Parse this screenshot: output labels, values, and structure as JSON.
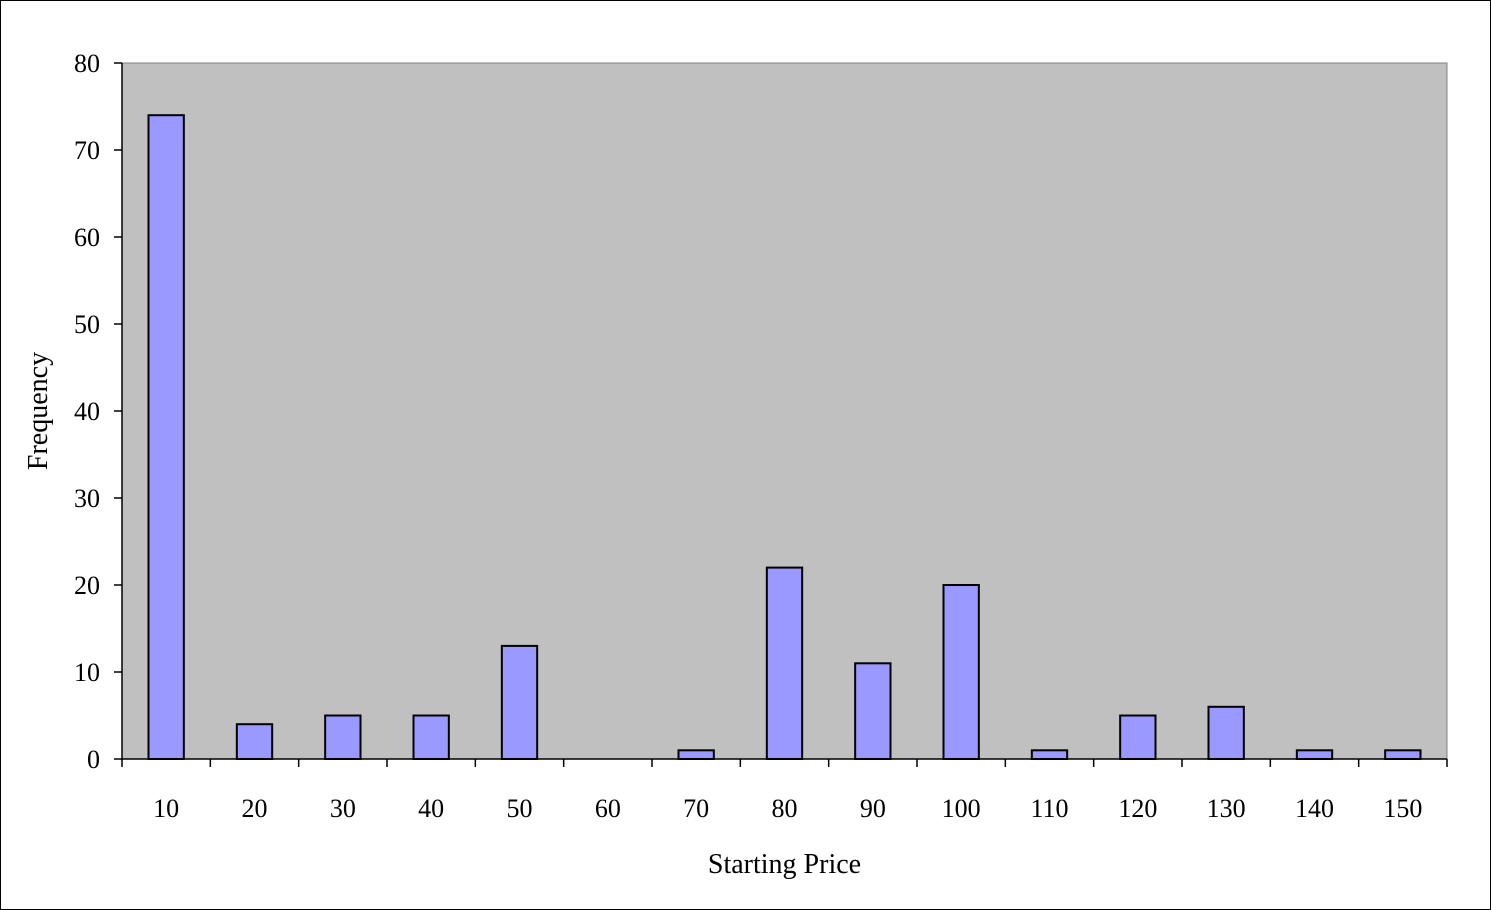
{
  "chart_data": {
    "type": "bar",
    "title": "",
    "xlabel": "Starting Price",
    "ylabel": "Frequency",
    "categories": [
      "10",
      "20",
      "30",
      "40",
      "50",
      "60",
      "70",
      "80",
      "90",
      "100",
      "110",
      "120",
      "130",
      "140",
      "150"
    ],
    "values": [
      74,
      4,
      5,
      5,
      13,
      0,
      1,
      22,
      11,
      20,
      1,
      5,
      6,
      1,
      1
    ],
    "ylim": [
      0,
      80
    ],
    "yticks": [
      0,
      10,
      20,
      30,
      40,
      50,
      60,
      70,
      80
    ],
    "grid": false,
    "legend": "none",
    "colors": {
      "bar_fill": "#9999ff",
      "bar_stroke": "#000000",
      "plot_background": "#c0c0c0",
      "plot_border": "#808080",
      "page_background": "#ffffff"
    }
  }
}
